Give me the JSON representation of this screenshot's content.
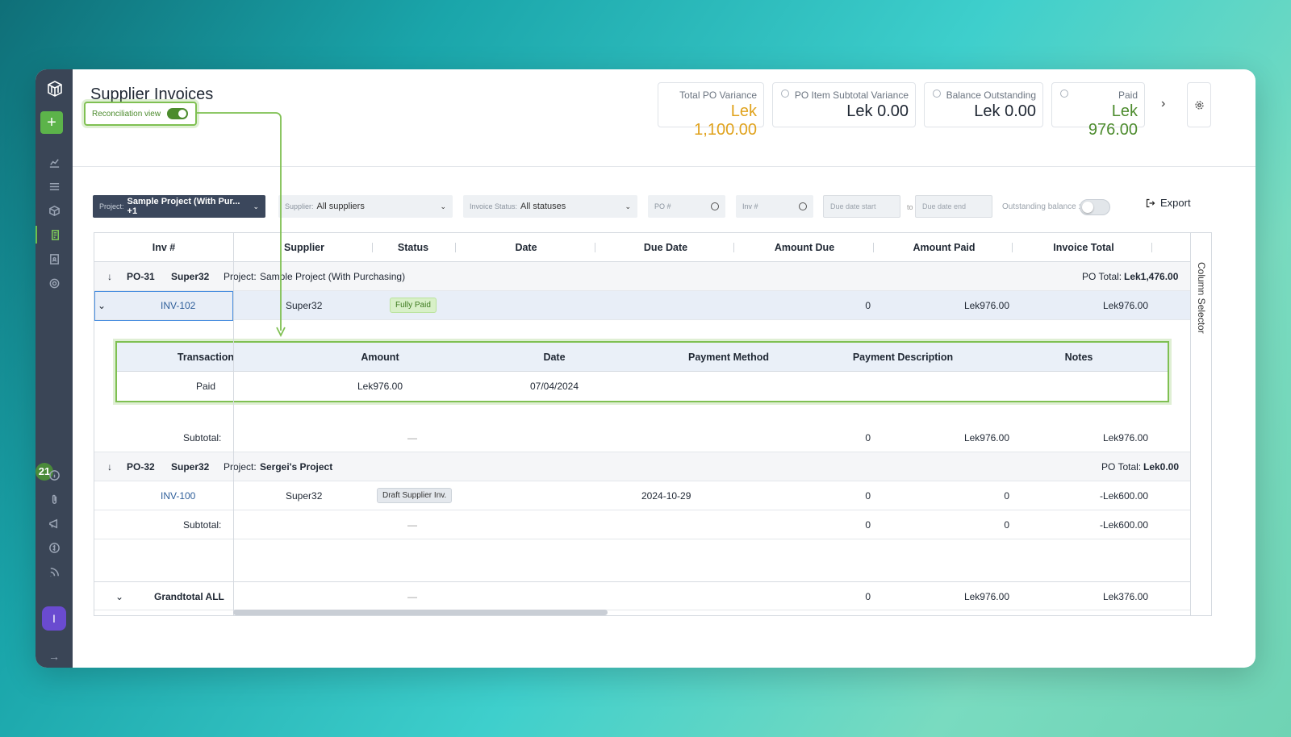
{
  "header": {
    "title": "Supplier Invoices",
    "recon_label": "Reconciliation view"
  },
  "kpis": [
    {
      "label": "Total PO Variance",
      "value": "Lek 1,100.00",
      "color": "#e0a21c"
    },
    {
      "label": "PO Item Subtotal Variance",
      "value": "Lek 0.00",
      "color": "#1f2733"
    },
    {
      "label": "Balance Outstanding",
      "value": "Lek 0.00",
      "color": "#1f2733"
    },
    {
      "label": "Paid",
      "value": "Lek 976.00",
      "color": "#4c8b2d"
    }
  ],
  "filters": {
    "project_prefix": "Project:",
    "project_value": "Sample Project (With Pur... +1",
    "supplier_prefix": "Supplier:",
    "supplier_value": "All suppliers",
    "status_prefix": "Invoice Status:",
    "status_value": "All statuses",
    "po_placeholder": "PO #",
    "inv_placeholder": "Inv #",
    "due_start": "Due date start",
    "to": "to",
    "due_end": "Due date end",
    "outstanding_label": "Outstanding balance :",
    "export": "Export"
  },
  "columns": [
    "Inv #",
    "Supplier",
    "Status",
    "Date",
    "Due Date",
    "Amount Due",
    "Amount Paid",
    "Invoice Total"
  ],
  "groups": [
    {
      "po": "PO-31",
      "supplier": "Super32",
      "project_prefix": "Project:",
      "project": "Sample Project (With Purchasing)",
      "total_label": "PO Total:",
      "total": "Lek1,476.00"
    },
    {
      "po": "PO-32",
      "supplier": "Super32",
      "project_prefix": "Project:",
      "project": "Sergei's Project",
      "total_label": "PO Total:",
      "total": "Lek0.00"
    }
  ],
  "rows": [
    {
      "inv": "INV-102",
      "supplier": "Super32",
      "status": "Fully Paid",
      "date": "",
      "due": "",
      "amount_due": "0",
      "amount_paid": "Lek976.00",
      "total": "Lek976.00"
    },
    {
      "inv": "INV-100",
      "supplier": "Super32",
      "status": "Draft Supplier Inv.",
      "date": "",
      "due": "2024-10-29",
      "amount_due": "0",
      "amount_paid": "0",
      "total": "-Lek600.00"
    }
  ],
  "subtotals": [
    {
      "label": "Subtotal:",
      "dash": "—",
      "amount_due": "0",
      "amount_paid": "Lek976.00",
      "total": "Lek976.00"
    },
    {
      "label": "Subtotal:",
      "dash": "—",
      "amount_due": "0",
      "amount_paid": "0",
      "total": "-Lek600.00"
    }
  ],
  "grandtotal": {
    "label": "Grandtotal ALL",
    "dash": "—",
    "amount_due": "0",
    "amount_paid": "Lek976.00",
    "total": "Lek376.00"
  },
  "detail": {
    "columns": [
      "Transaction",
      "Amount",
      "Date",
      "Payment Method",
      "Payment Description",
      "Notes"
    ],
    "row": {
      "transaction": "Paid",
      "amount": "Lek976.00",
      "date": "07/04/2024"
    }
  },
  "column_selector": "Column Selector",
  "sidebar": {
    "badge": "21",
    "avatar": "I"
  },
  "colors": {
    "accent": "#7fc052",
    "sidebar": "#3a4556"
  }
}
